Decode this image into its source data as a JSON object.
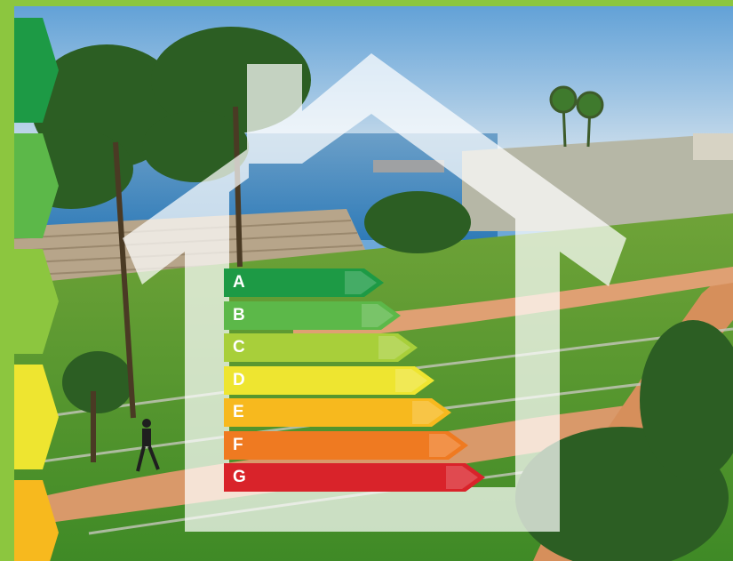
{
  "colors": {
    "frame_green": "#8cc63f",
    "house_outline": "#ffffff"
  },
  "energy_ratings": [
    {
      "label": "A",
      "color": "#1d9a45"
    },
    {
      "label": "B",
      "color": "#5cb849"
    },
    {
      "label": "C",
      "color": "#a8cf3a"
    },
    {
      "label": "D",
      "color": "#eee530"
    },
    {
      "label": "E",
      "color": "#f7b91e"
    },
    {
      "label": "F",
      "color": "#ef7a21"
    },
    {
      "label": "G",
      "color": "#d9232a"
    }
  ],
  "side_chevrons": [
    {
      "color": "#1d9a45"
    },
    {
      "color": "#5cb849"
    },
    {
      "color": "#8cc63f"
    },
    {
      "color": "#eee530"
    },
    {
      "color": "#f7b91e"
    }
  ]
}
